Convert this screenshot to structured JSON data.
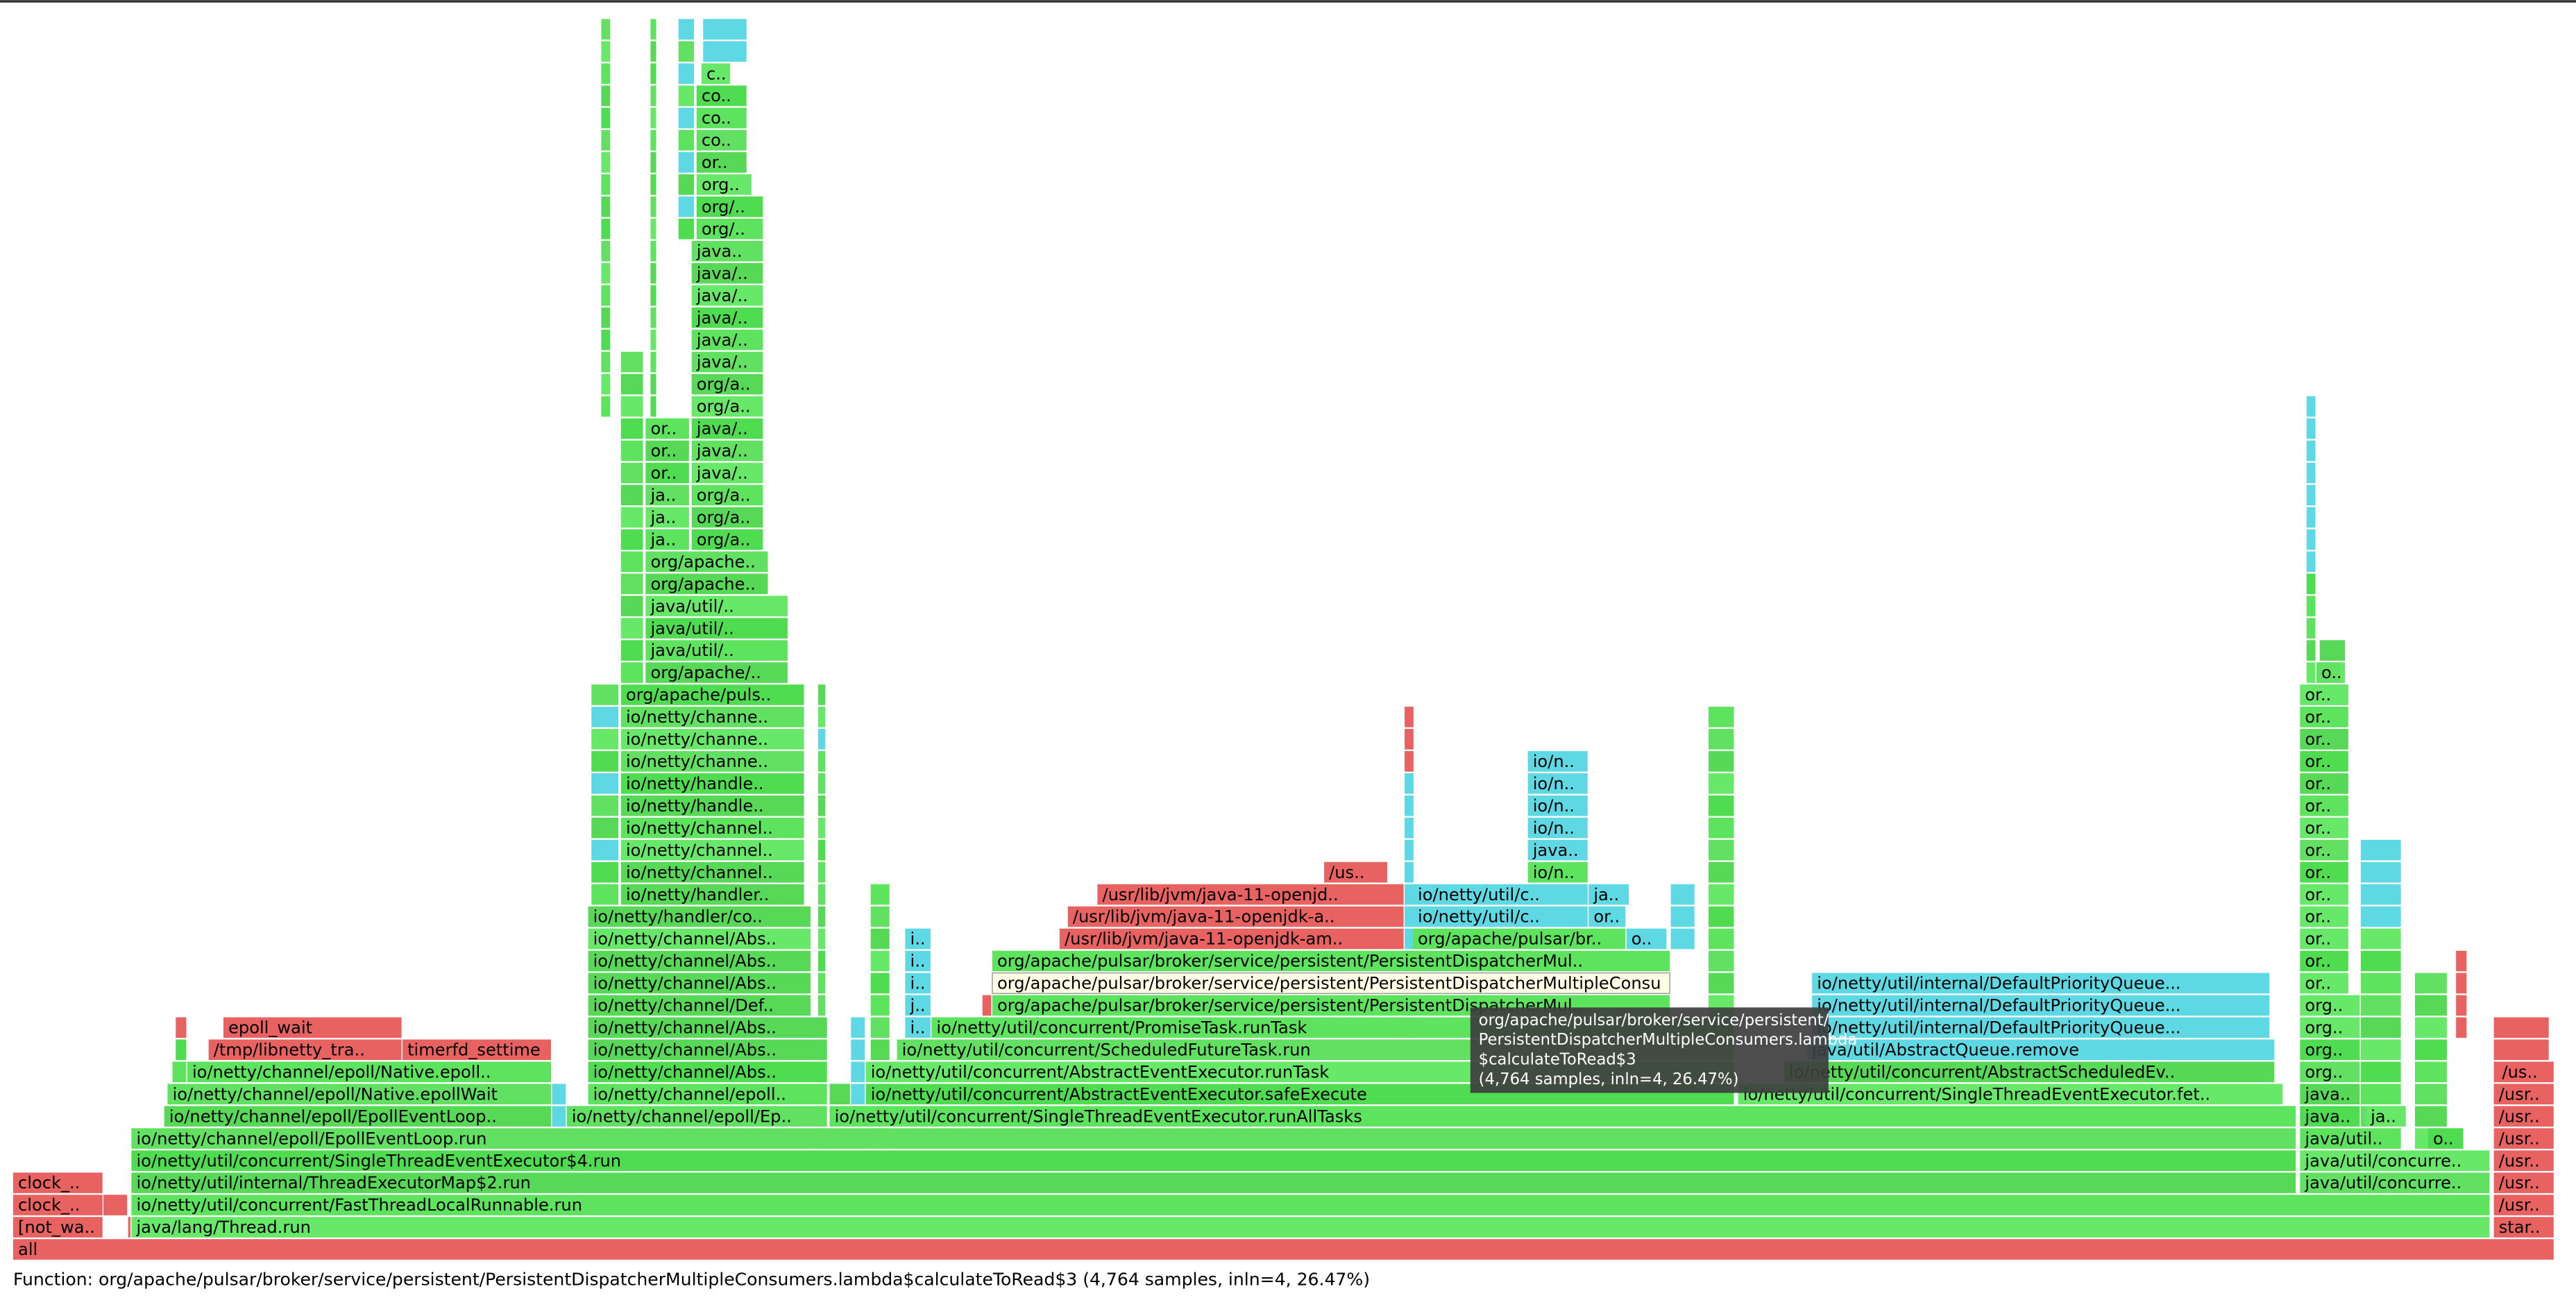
{
  "frames": [
    "all",
    "[not_wa..",
    "java/lang/Thread.run",
    "star..",
    "clock_..",
    "io/netty/util/concurrent/FastThreadLocalRunnable.run",
    "/usr..",
    "clock_..",
    "io/netty/util/internal/ThreadExecutorMap$2.run",
    "java/util/concurre..",
    "/usr..",
    "io/netty/util/concurrent/SingleThreadEventExecutor$4.run",
    "java/util/concurre..",
    "/usr..",
    "io/netty/channel/epoll/EpollEventLoop.run",
    "java/util..",
    "o..",
    "/usr..",
    "io/netty/channel/epoll/EpollEventLoop..",
    "io/netty/channel/epoll/Ep..",
    "io/netty/util/concurrent/SingleThreadEventExecutor.runAllTasks",
    "java..",
    "ja..",
    "/usr..",
    "io/netty/channel/epoll/Native.epollWait",
    "io/netty/channel/epoll..",
    "io/netty/util/concurrent/AbstractEventExecutor.safeExecute",
    "io/netty/util/concurrent/SingleThreadEventExecutor.fet..",
    "java..",
    "/usr..",
    "io/netty/channel/epoll/Native.epoll..",
    "io/netty/channel/Abs..",
    "io/netty/util/concurrent/AbstractEventExecutor.runTask",
    "io/netty/util/concurrent/AbstractScheduledEv..",
    "org..",
    "/us..",
    "/tmp/libnetty_tra..",
    "timerfd_settime",
    "io/netty/channel/Abs..",
    "io/netty/util/concurrent/ScheduledFutureTask.run",
    "java/util/AbstractQueue.remove",
    "org..",
    "epoll_wait",
    "io/netty/channel/Abs..",
    "i..",
    "io/netty/util/concurrent/PromiseTask.runTask",
    "io/netty/util/internal/DefaultPriorityQueue...",
    "org..",
    "io/netty/channel/Def..",
    "j..",
    "org/apache/pulsar/broker/service/persistent/PersistentDispatcherMul..",
    "io/netty/util/internal/DefaultPriorityQueue...",
    "org..",
    "io/netty/channel/Abs..",
    "i..",
    "org/apache/pulsar/broker/service/persistent/PersistentDispatcherMultipleConsu",
    "io/netty/util/internal/DefaultPriorityQueue...",
    "or..",
    "io/netty/channel/Abs..",
    "i..",
    "org/apache/pulsar/broker/service/persistent/PersistentDispatcherMul..",
    "or..",
    "io/netty/channel/Abs..",
    "i..",
    "/usr/lib/jvm/java-11-openjdk-am..",
    "org/apache/pulsar/br..",
    "o..",
    "or..",
    "io/netty/handler/co..",
    "/usr/lib/jvm/java-11-openjdk-a..",
    "io/netty/util/c..",
    "or..",
    "or..",
    "io/netty/handler..",
    "/usr/lib/jvm/java-11-openjd..",
    "io/netty/util/c..",
    "ja..",
    "or..",
    "io/netty/channel..",
    "/us..",
    "io/n..",
    "or..",
    "io/netty/channel..",
    "java..",
    "or..",
    "io/netty/channel..",
    "io/n..",
    "or..",
    "io/netty/handle..",
    "io/n..",
    "or..",
    "io/netty/handle..",
    "io/n..",
    "or..",
    "io/netty/channe..",
    "io/n..",
    "or..",
    "io/netty/channe..",
    "or..",
    "io/netty/channe..",
    "or..",
    "org/apache/puls..",
    "or..",
    "org/apache/..",
    "o..",
    "java/util/..",
    "java/util/..",
    "java/util/..",
    "org/apache..",
    "org/apache..",
    "ja..",
    "org/a..",
    "ja..",
    "org/a..",
    "ja..",
    "org/a..",
    "or..",
    "java/..",
    "or..",
    "java/..",
    "or..",
    "java/..",
    "org/a..",
    "org/a..",
    "java/..",
    "java/..",
    "java/..",
    "java/..",
    "java/..",
    "java..",
    "org/..",
    "org/..",
    "org..",
    "or..",
    "co..",
    "co..",
    "co..",
    "c.."
  ],
  "tooltip": [
    "org/apache/pulsar/broker/service/persistent/",
    "PersistentDispatcherMultipleConsumers.lambda",
    "$calculateToRead$3",
    "(4,764 samples, inln=4, 26.47%)"
  ],
  "footer": "Function: org/apache/pulsar/broker/service/persistent/PersistentDispatcherMultipleConsumers.lambda$calculateToRead$3 (4,764 samples, inln=4, 26.47%)"
}
